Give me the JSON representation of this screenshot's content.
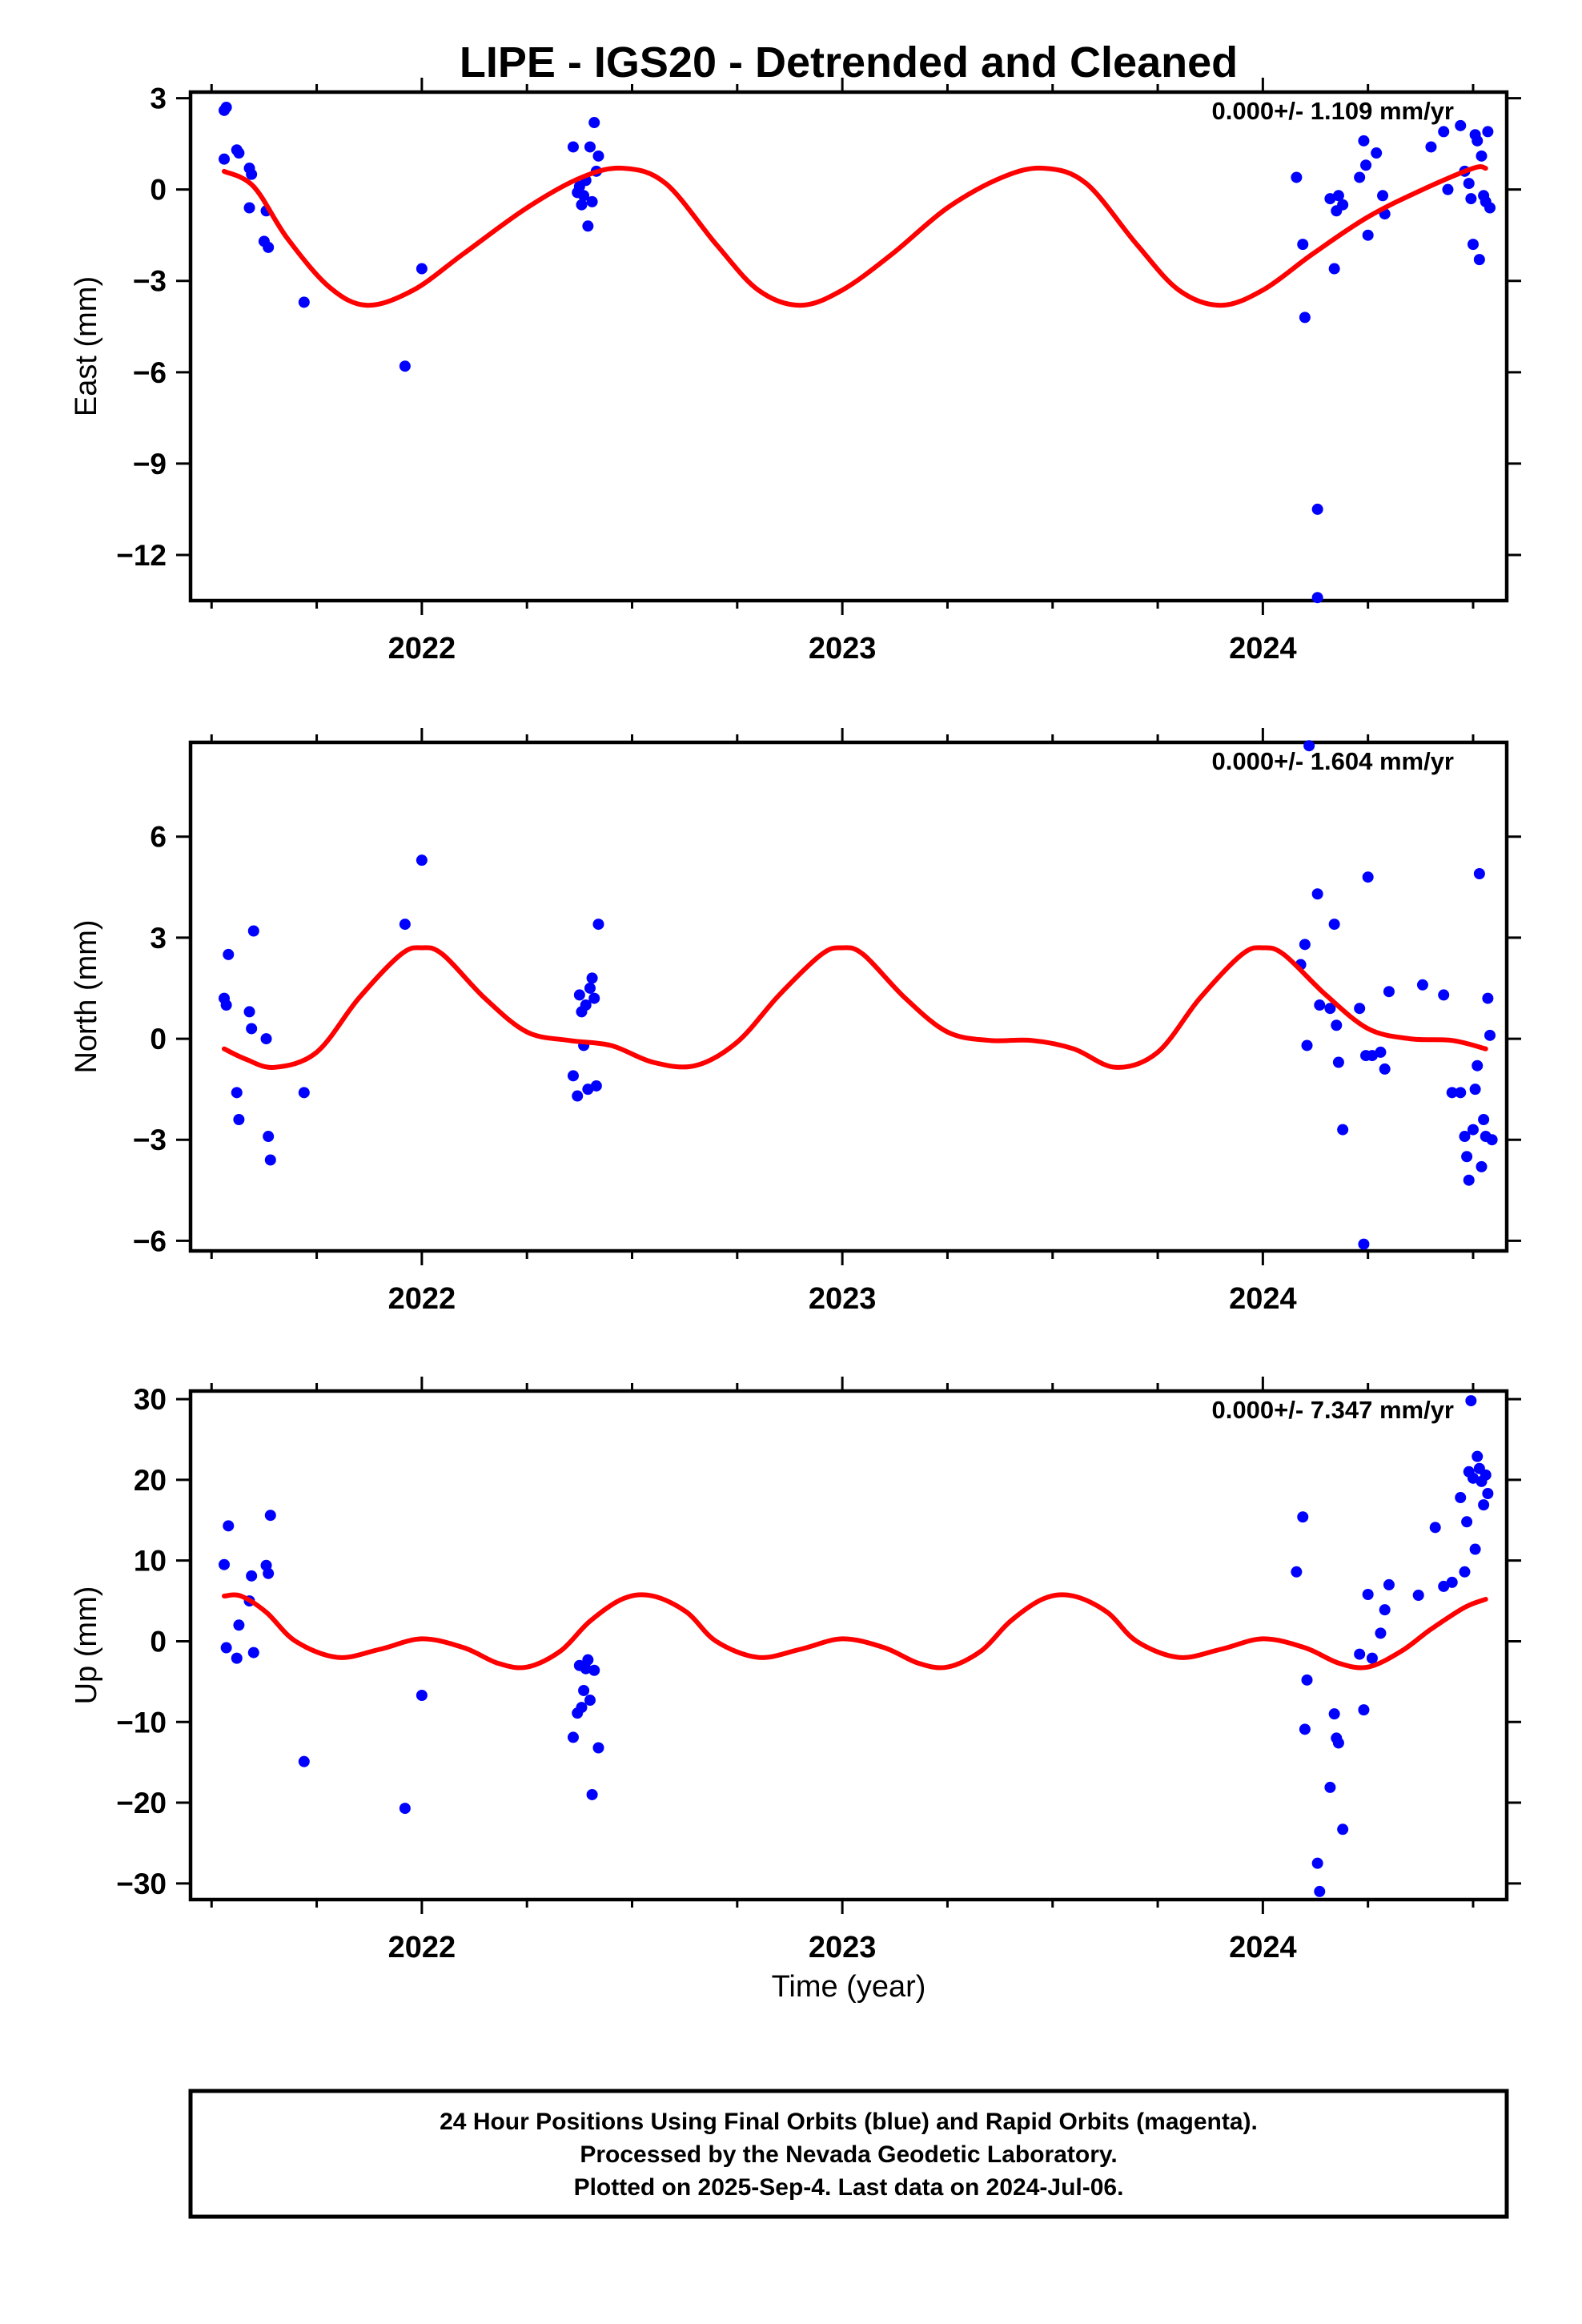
{
  "title": "LIPE - IGS20 - Detrended and Cleaned",
  "xlabel": "Time (year)",
  "footer": [
    "24 Hour Positions Using Final Orbits (blue) and Rapid Orbits (magenta).",
    "Processed by the Nevada Geodetic Laboratory.",
    "Plotted on 2025-Sep-4. Last data on 2024-Jul-06."
  ],
  "colors": {
    "points": "#0000ff",
    "model": "#ff0000",
    "rapid_points": "#ff00ff",
    "axes": "#000000"
  },
  "chart_data": [
    {
      "type": "scatter",
      "ylabel": "East (mm)",
      "rate_label": "0.000+/- 1.109 mm/yr",
      "xlim": [
        2021.45,
        2024.58
      ],
      "ylim": [
        -13.5,
        3.2
      ],
      "yticks": [
        3,
        0,
        -3,
        -6,
        -9,
        -12
      ],
      "ytick_labels": [
        "3",
        "0",
        "−3",
        "−6",
        "−9",
        "−12"
      ],
      "xticks": [
        2022,
        2023,
        2024
      ],
      "xtick_labels": [
        "2022",
        "2023",
        "2024"
      ],
      "grid": false,
      "points": [
        [
          2021.53,
          2.6
        ],
        [
          2021.535,
          2.7
        ],
        [
          2021.53,
          1.0
        ],
        [
          2021.56,
          1.3
        ],
        [
          2021.565,
          1.2
        ],
        [
          2021.59,
          0.7
        ],
        [
          2021.595,
          0.5
        ],
        [
          2021.59,
          -0.6
        ],
        [
          2021.63,
          -0.7
        ],
        [
          2021.625,
          -1.7
        ],
        [
          2021.635,
          -1.9
        ],
        [
          2021.72,
          -3.7
        ],
        [
          2021.96,
          -5.8
        ],
        [
          2022.0,
          -2.6
        ],
        [
          2022.36,
          1.4
        ],
        [
          2022.37,
          -0.1
        ],
        [
          2022.375,
          0.1
        ],
        [
          2022.38,
          -0.5
        ],
        [
          2022.385,
          -0.2
        ],
        [
          2022.39,
          0.3
        ],
        [
          2022.395,
          -1.2
        ],
        [
          2022.4,
          1.4
        ],
        [
          2022.405,
          -0.4
        ],
        [
          2022.41,
          2.2
        ],
        [
          2022.415,
          0.6
        ],
        [
          2022.42,
          1.1
        ],
        [
          2024.08,
          0.4
        ],
        [
          2024.095,
          -1.8
        ],
        [
          2024.1,
          -4.2
        ],
        [
          2024.13,
          -10.5
        ],
        [
          2024.13,
          -13.4
        ],
        [
          2024.16,
          -0.3
        ],
        [
          2024.17,
          -2.6
        ],
        [
          2024.175,
          -0.7
        ],
        [
          2024.18,
          -0.2
        ],
        [
          2024.19,
          -0.5
        ],
        [
          2024.23,
          0.4
        ],
        [
          2024.24,
          1.6
        ],
        [
          2024.245,
          0.8
        ],
        [
          2024.25,
          -1.5
        ],
        [
          2024.27,
          1.2
        ],
        [
          2024.285,
          -0.2
        ],
        [
          2024.29,
          -0.8
        ],
        [
          2024.4,
          1.4
        ],
        [
          2024.43,
          1.9
        ],
        [
          2024.44,
          0.0
        ],
        [
          2024.47,
          2.1
        ],
        [
          2024.48,
          0.6
        ],
        [
          2024.49,
          0.2
        ],
        [
          2024.495,
          -0.3
        ],
        [
          2024.5,
          -1.8
        ],
        [
          2024.505,
          1.8
        ],
        [
          2024.51,
          1.6
        ],
        [
          2024.515,
          -2.3
        ],
        [
          2024.52,
          1.1
        ],
        [
          2024.525,
          -0.2
        ],
        [
          2024.53,
          -0.4
        ],
        [
          2024.535,
          1.9
        ],
        [
          2024.54,
          -0.6
        ]
      ],
      "model": {
        "x": [
          2021.53,
          2021.6,
          2021.68,
          2021.78,
          2021.87,
          2021.98,
          2022.1,
          2022.25,
          2022.38,
          2022.48,
          2022.58,
          2022.7,
          2022.8,
          2022.9,
          2023.0,
          2023.12,
          2023.25,
          2023.38,
          2023.48,
          2023.58,
          2023.7,
          2023.8,
          2023.9,
          2024.0,
          2024.12,
          2024.25,
          2024.38,
          2024.5,
          2024.53
        ],
        "y": [
          0.6,
          0.1,
          -1.6,
          -3.2,
          -3.8,
          -3.3,
          -2.1,
          -0.6,
          0.4,
          0.7,
          0.2,
          -1.8,
          -3.3,
          -3.8,
          -3.3,
          -2.1,
          -0.6,
          0.4,
          0.7,
          0.2,
          -1.8,
          -3.3,
          -3.8,
          -3.3,
          -2.1,
          -0.9,
          0.0,
          0.7,
          0.7
        ]
      }
    },
    {
      "type": "scatter",
      "ylabel": "North (mm)",
      "rate_label": "0.000+/- 1.604 mm/yr",
      "xlim": [
        2021.45,
        2024.58
      ],
      "ylim": [
        -6.3,
        8.8
      ],
      "yticks": [
        6,
        3,
        0,
        -3,
        -6
      ],
      "ytick_labels": [
        "6",
        "3",
        "0",
        "−3",
        "−6"
      ],
      "xticks": [
        2022,
        2023,
        2024
      ],
      "xtick_labels": [
        "2022",
        "2023",
        "2024"
      ],
      "grid": false,
      "points": [
        [
          2021.53,
          1.2
        ],
        [
          2021.535,
          1.0
        ],
        [
          2021.54,
          2.5
        ],
        [
          2021.56,
          -1.6
        ],
        [
          2021.565,
          -2.4
        ],
        [
          2021.59,
          0.8
        ],
        [
          2021.595,
          0.3
        ],
        [
          2021.6,
          3.2
        ],
        [
          2021.63,
          0.0
        ],
        [
          2021.635,
          -2.9
        ],
        [
          2021.64,
          -3.6
        ],
        [
          2021.72,
          -1.6
        ],
        [
          2021.96,
          3.4
        ],
        [
          2022.0,
          5.3
        ],
        [
          2022.36,
          -1.1
        ],
        [
          2022.37,
          -1.7
        ],
        [
          2022.375,
          1.3
        ],
        [
          2022.38,
          0.8
        ],
        [
          2022.385,
          -0.2
        ],
        [
          2022.39,
          1.0
        ],
        [
          2022.395,
          -1.5
        ],
        [
          2022.4,
          1.5
        ],
        [
          2022.405,
          1.8
        ],
        [
          2022.41,
          1.2
        ],
        [
          2022.415,
          -1.4
        ],
        [
          2022.42,
          3.4
        ],
        [
          2024.09,
          2.2
        ],
        [
          2024.1,
          2.8
        ],
        [
          2024.105,
          -0.2
        ],
        [
          2024.11,
          8.7
        ],
        [
          2024.13,
          4.3
        ],
        [
          2024.135,
          1.0
        ],
        [
          2024.16,
          0.9
        ],
        [
          2024.17,
          3.4
        ],
        [
          2024.175,
          0.4
        ],
        [
          2024.18,
          -0.7
        ],
        [
          2024.19,
          -2.7
        ],
        [
          2024.23,
          0.9
        ],
        [
          2024.24,
          -6.1
        ],
        [
          2024.245,
          -0.5
        ],
        [
          2024.25,
          4.8
        ],
        [
          2024.26,
          -0.5
        ],
        [
          2024.28,
          -0.4
        ],
        [
          2024.29,
          -0.9
        ],
        [
          2024.3,
          1.4
        ],
        [
          2024.38,
          1.6
        ],
        [
          2024.43,
          1.3
        ],
        [
          2024.45,
          -1.6
        ],
        [
          2024.47,
          -1.6
        ],
        [
          2024.48,
          -2.9
        ],
        [
          2024.485,
          -3.5
        ],
        [
          2024.49,
          -4.2
        ],
        [
          2024.5,
          -2.7
        ],
        [
          2024.505,
          -1.5
        ],
        [
          2024.51,
          -0.8
        ],
        [
          2024.515,
          4.9
        ],
        [
          2024.52,
          -3.8
        ],
        [
          2024.525,
          -2.4
        ],
        [
          2024.53,
          -2.9
        ],
        [
          2024.535,
          1.2
        ],
        [
          2024.54,
          0.1
        ],
        [
          2024.545,
          -3.0
        ]
      ],
      "model": {
        "x": [
          2021.53,
          2021.58,
          2021.65,
          2021.75,
          2021.85,
          2021.95,
          2022.0,
          2022.05,
          2022.15,
          2022.25,
          2022.35,
          2022.45,
          2022.55,
          2022.65,
          2022.75,
          2022.85,
          2022.95,
          2023.0,
          2023.05,
          2023.15,
          2023.25,
          2023.35,
          2023.45,
          2023.55,
          2023.65,
          2023.75,
          2023.85,
          2023.95,
          2024.0,
          2024.05,
          2024.15,
          2024.25,
          2024.35,
          2024.45,
          2024.53
        ],
        "y": [
          -0.3,
          -0.6,
          -0.85,
          -0.4,
          1.2,
          2.5,
          2.7,
          2.5,
          1.2,
          0.2,
          -0.05,
          -0.2,
          -0.7,
          -0.8,
          -0.1,
          1.3,
          2.5,
          2.7,
          2.5,
          1.2,
          0.2,
          -0.05,
          -0.05,
          -0.3,
          -0.85,
          -0.4,
          1.2,
          2.5,
          2.7,
          2.5,
          1.3,
          0.3,
          0.0,
          -0.05,
          -0.3
        ]
      }
    },
    {
      "type": "scatter",
      "ylabel": "Up (mm)",
      "rate_label": "0.000+/- 7.347 mm/yr",
      "xlim": [
        2021.45,
        2024.58
      ],
      "ylim": [
        -32,
        31
      ],
      "yticks": [
        30,
        20,
        10,
        0,
        -10,
        -20,
        -30
      ],
      "ytick_labels": [
        "30",
        "20",
        "10",
        "0",
        "−10",
        "−20",
        "−30"
      ],
      "xticks": [
        2022,
        2023,
        2024
      ],
      "xtick_labels": [
        "2022",
        "2023",
        "2024"
      ],
      "grid": false,
      "points": [
        [
          2021.53,
          9.5
        ],
        [
          2021.535,
          -0.8
        ],
        [
          2021.54,
          14.3
        ],
        [
          2021.56,
          -2.1
        ],
        [
          2021.565,
          2.0
        ],
        [
          2021.59,
          5.0
        ],
        [
          2021.595,
          8.1
        ],
        [
          2021.6,
          -1.4
        ],
        [
          2021.63,
          9.4
        ],
        [
          2021.635,
          8.4
        ],
        [
          2021.64,
          15.6
        ],
        [
          2021.72,
          -14.9
        ],
        [
          2021.96,
          -20.7
        ],
        [
          2022.0,
          -6.7
        ],
        [
          2022.36,
          -11.9
        ],
        [
          2022.37,
          -8.9
        ],
        [
          2022.375,
          -3.0
        ],
        [
          2022.38,
          -8.2
        ],
        [
          2022.385,
          -6.1
        ],
        [
          2022.39,
          -3.4
        ],
        [
          2022.395,
          -2.3
        ],
        [
          2022.4,
          -7.3
        ],
        [
          2022.405,
          -19.0
        ],
        [
          2022.41,
          -3.6
        ],
        [
          2022.42,
          -13.2
        ],
        [
          2024.08,
          8.6
        ],
        [
          2024.095,
          15.4
        ],
        [
          2024.1,
          -10.9
        ],
        [
          2024.105,
          -4.8
        ],
        [
          2024.13,
          -27.5
        ],
        [
          2024.135,
          -31.0
        ],
        [
          2024.16,
          -18.1
        ],
        [
          2024.17,
          -9.0
        ],
        [
          2024.175,
          -12.0
        ],
        [
          2024.18,
          -12.6
        ],
        [
          2024.19,
          -23.3
        ],
        [
          2024.23,
          -1.6
        ],
        [
          2024.24,
          -8.5
        ],
        [
          2024.25,
          5.8
        ],
        [
          2024.26,
          -2.1
        ],
        [
          2024.28,
          1.0
        ],
        [
          2024.29,
          3.9
        ],
        [
          2024.3,
          7.0
        ],
        [
          2024.37,
          5.7
        ],
        [
          2024.41,
          14.1
        ],
        [
          2024.43,
          6.8
        ],
        [
          2024.45,
          7.3
        ],
        [
          2024.47,
          17.8
        ],
        [
          2024.48,
          8.6
        ],
        [
          2024.485,
          14.8
        ],
        [
          2024.49,
          21.0
        ],
        [
          2024.495,
          29.8
        ],
        [
          2024.5,
          20.2
        ],
        [
          2024.505,
          11.4
        ],
        [
          2024.51,
          22.9
        ],
        [
          2024.515,
          21.4
        ],
        [
          2024.52,
          19.8
        ],
        [
          2024.525,
          16.9
        ],
        [
          2024.53,
          20.6
        ],
        [
          2024.535,
          18.3
        ]
      ],
      "model": {
        "x": [
          2021.53,
          2021.57,
          2021.63,
          2021.7,
          2021.8,
          2021.9,
          2022.0,
          2022.1,
          2022.18,
          2022.25,
          2022.33,
          2022.4,
          2022.48,
          2022.55,
          2022.63,
          2022.7,
          2022.8,
          2022.9,
          2023.0,
          2023.1,
          2023.18,
          2023.25,
          2023.33,
          2023.4,
          2023.48,
          2023.55,
          2023.63,
          2023.7,
          2023.8,
          2023.9,
          2024.0,
          2024.1,
          2024.18,
          2024.25,
          2024.33,
          2024.4,
          2024.48,
          2024.53
        ],
        "y": [
          5.6,
          5.6,
          3.6,
          0.0,
          -2.0,
          -1.0,
          0.3,
          -0.8,
          -2.7,
          -3.2,
          -1.2,
          2.5,
          5.3,
          5.6,
          3.6,
          0.0,
          -2.0,
          -1.0,
          0.3,
          -0.8,
          -2.7,
          -3.2,
          -1.2,
          2.5,
          5.3,
          5.6,
          3.6,
          0.0,
          -2.0,
          -1.0,
          0.3,
          -0.8,
          -2.7,
          -3.2,
          -1.2,
          1.5,
          4.2,
          5.2
        ]
      }
    }
  ]
}
